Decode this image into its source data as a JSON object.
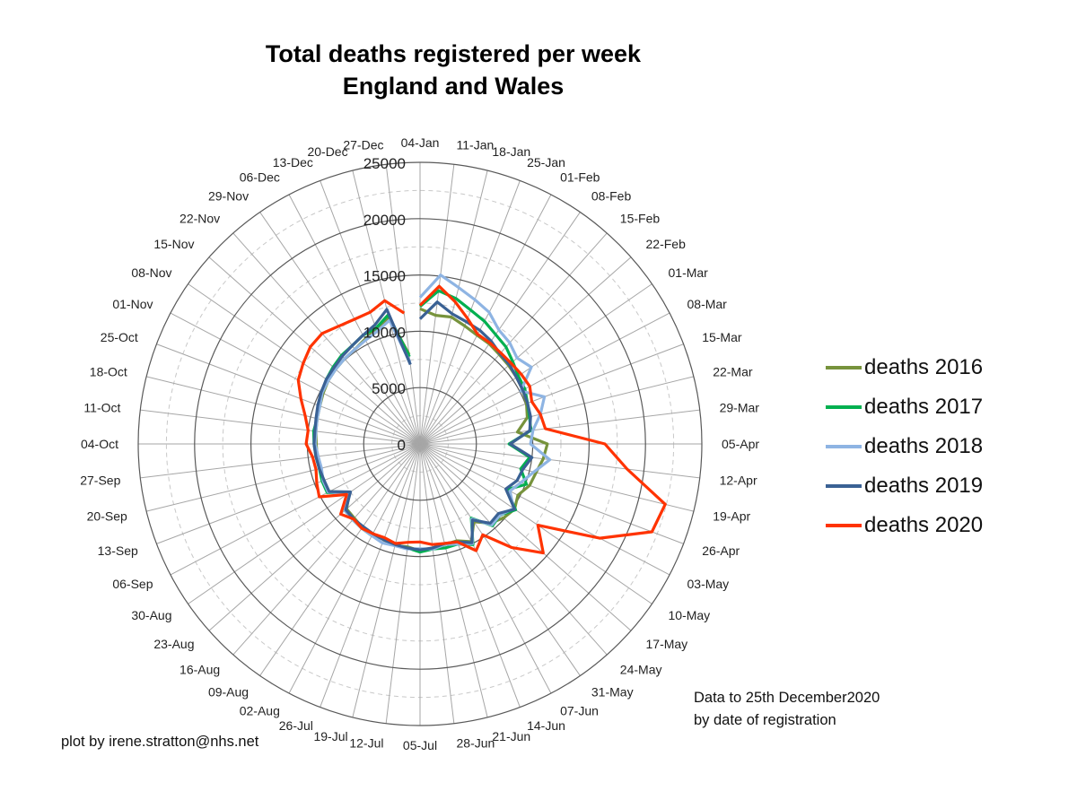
{
  "chart_data": {
    "type": "radar",
    "title": "Total deaths registered per week",
    "subtitle": "England and Wales",
    "categories": [
      "04-Jan",
      "11-Jan",
      "18-Jan",
      "25-Jan",
      "01-Feb",
      "08-Feb",
      "15-Feb",
      "22-Feb",
      "01-Mar",
      "08-Mar",
      "15-Mar",
      "22-Mar",
      "29-Mar",
      "05-Apr",
      "12-Apr",
      "19-Apr",
      "26-Apr",
      "03-May",
      "10-May",
      "17-May",
      "24-May",
      "31-May",
      "07-Jun",
      "14-Jun",
      "21-Jun",
      "28-Jun",
      "05-Jul",
      "12-Jul",
      "19-Jul",
      "26-Jul",
      "02-Aug",
      "09-Aug",
      "16-Aug",
      "23-Aug",
      "30-Aug",
      "06-Sep",
      "13-Sep",
      "20-Sep",
      "27-Sep",
      "04-Oct",
      "11-Oct",
      "18-Oct",
      "25-Oct",
      "01-Nov",
      "08-Nov",
      "15-Nov",
      "22-Nov",
      "29-Nov",
      "06-Dec",
      "13-Dec",
      "20-Dec",
      "27-Dec"
    ],
    "radial_ticks": [
      0,
      5000,
      10000,
      15000,
      20000,
      25000
    ],
    "rlim": [
      0,
      25000
    ],
    "grid": true,
    "legend_position": "right",
    "series": [
      {
        "name": "deaths 2016",
        "color": "#77933C",
        "values": [
          12000,
          11500,
          11600,
          11200,
          10900,
          10800,
          10600,
          10500,
          10400,
          10300,
          10100,
          9800,
          8700,
          11300,
          11000,
          10600,
          10400,
          9800,
          10200,
          9900,
          9400,
          8400,
          9800,
          9200,
          9200,
          9300,
          9500,
          9200,
          9300,
          9100,
          9000,
          9000,
          8800,
          8700,
          7600,
          9100,
          9200,
          9100,
          9200,
          9200,
          9300,
          9400,
          9500,
          9700,
          9900,
          10000,
          10100,
          10200,
          10500,
          10900,
          11600,
          8000
        ]
      },
      {
        "name": "deaths 2017",
        "color": "#00B050",
        "values": [
          12200,
          13700,
          13300,
          12700,
          12300,
          11800,
          11500,
          11000,
          10600,
          10500,
          10200,
          10000,
          9900,
          7900,
          9800,
          9200,
          10100,
          8700,
          10300,
          9500,
          9700,
          8000,
          10100,
          9500,
          9500,
          9400,
          9600,
          9300,
          9200,
          9000,
          9200,
          9100,
          9000,
          8900,
          7700,
          9300,
          9300,
          9200,
          9300,
          9400,
          9500,
          9400,
          9600,
          9800,
          10100,
          10300,
          10500,
          10600,
          10900,
          11000,
          11800,
          7800
        ]
      },
      {
        "name": "deaths 2018",
        "color": "#8EB4E3",
        "values": [
          13000,
          15100,
          14300,
          13700,
          13200,
          12300,
          12000,
          11500,
          12000,
          10100,
          11800,
          11000,
          10100,
          9800,
          11600,
          10400,
          9600,
          9000,
          10100,
          9500,
          9600,
          8100,
          10000,
          9500,
          9200,
          9400,
          9300,
          9400,
          9300,
          9400,
          9200,
          9100,
          9000,
          8900,
          7800,
          9200,
          9200,
          9000,
          9100,
          9300,
          9300,
          9400,
          9500,
          9800,
          9900,
          10000,
          10100,
          10200,
          10400,
          10700,
          11300,
          7300
        ]
      },
      {
        "name": "deaths 2019",
        "color": "#3A6194",
        "values": [
          11100,
          12700,
          11900,
          11600,
          11400,
          11100,
          10700,
          10600,
          10400,
          10300,
          10200,
          10100,
          9800,
          8000,
          10000,
          9400,
          9200,
          8600,
          10200,
          9300,
          9400,
          8200,
          9900,
          9300,
          9100,
          9300,
          9400,
          9300,
          9200,
          9100,
          9000,
          8900,
          8900,
          8800,
          7500,
          9100,
          9100,
          9200,
          9300,
          9400,
          9400,
          9500,
          9700,
          9900,
          10100,
          10200,
          10400,
          10600,
          10900,
          11300,
          12300,
          7100
        ]
      },
      {
        "name": "deaths 2020",
        "color": "#FF3300",
        "values": [
          12300,
          14100,
          13000,
          11900,
          11000,
          10900,
          10800,
          10800,
          10900,
          11000,
          10600,
          11000,
          11200,
          16400,
          18500,
          22400,
          22000,
          18000,
          12700,
          14600,
          12300,
          9800,
          10700,
          9300,
          9100,
          9000,
          8700,
          8800,
          9100,
          8900,
          9000,
          9100,
          8900,
          9400,
          7900,
          10100,
          9800,
          9500,
          9600,
          10100,
          10000,
          10500,
          11300,
          12200,
          12600,
          13000,
          13100,
          12700,
          12500,
          12500,
          13100,
          11700
        ]
      }
    ]
  },
  "legend": {
    "items": [
      {
        "label": "deaths 2016",
        "color": "#77933C"
      },
      {
        "label": "deaths 2017",
        "color": "#00B050"
      },
      {
        "label": "deaths 2018",
        "color": "#8EB4E3"
      },
      {
        "label": "deaths 2019",
        "color": "#3A6194"
      },
      {
        "label": "deaths 2020",
        "color": "#FF3300"
      }
    ]
  },
  "note": {
    "line1": "Data to 25th December2020",
    "line2": "by date of registration"
  },
  "credit": "plot by irene.stratton@nhs.net"
}
